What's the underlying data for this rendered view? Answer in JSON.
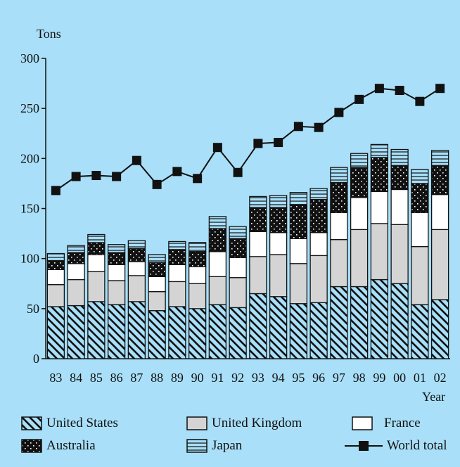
{
  "chart_data": {
    "type": "bar",
    "stacked": true,
    "ylabel": "Tons",
    "xlabel": "Year",
    "ylim": [
      0,
      300
    ],
    "yticks": [
      0,
      50,
      100,
      150,
      200,
      250,
      300
    ],
    "categories": [
      "83",
      "84",
      "85",
      "86",
      "87",
      "88",
      "89",
      "90",
      "91",
      "92",
      "93",
      "94",
      "95",
      "96",
      "97",
      "98",
      "99",
      "00",
      "01",
      "02"
    ],
    "series": [
      {
        "name": "United States",
        "pattern": "hatch",
        "values": [
          52,
          53,
          57,
          54,
          57,
          48,
          52,
          50,
          54,
          51,
          65,
          62,
          55,
          56,
          72,
          72,
          79,
          75,
          54,
          59
        ]
      },
      {
        "name": "United Kingdom",
        "pattern": "gray",
        "values": [
          22,
          26,
          30,
          24,
          26,
          19,
          25,
          25,
          28,
          30,
          37,
          42,
          40,
          47,
          47,
          57,
          56,
          59,
          58,
          70
        ]
      },
      {
        "name": "France",
        "pattern": "white",
        "values": [
          15,
          16,
          17,
          16,
          14,
          15,
          17,
          17,
          25,
          20,
          25,
          22,
          25,
          23,
          27,
          32,
          32,
          35,
          34,
          35
        ]
      },
      {
        "name": "Australia",
        "pattern": "dots",
        "values": [
          9,
          11,
          12,
          12,
          13,
          14,
          15,
          15,
          23,
          19,
          24,
          25,
          34,
          33,
          30,
          30,
          34,
          24,
          29,
          29
        ]
      },
      {
        "name": "Japan",
        "pattern": "hlines",
        "values": [
          7,
          7,
          8,
          8,
          8,
          8,
          8,
          9,
          12,
          12,
          11,
          12,
          12,
          11,
          15,
          14,
          13,
          16,
          14,
          15
        ]
      }
    ],
    "line": {
      "name": "World total",
      "values": [
        168,
        182,
        183,
        182,
        198,
        174,
        187,
        180,
        211,
        186,
        215,
        216,
        232,
        231,
        246,
        259,
        270,
        268,
        257,
        270
      ]
    },
    "colors": {
      "background": "#a9dff8",
      "bar_outline": "#111111",
      "uk_fill": "#d4d4d4",
      "hatch": "#111111"
    }
  },
  "legend": {
    "us": "United States",
    "uk": "United Kingdom",
    "fr": "France",
    "au": "Australia",
    "jp": "Japan",
    "wt": "World total"
  }
}
